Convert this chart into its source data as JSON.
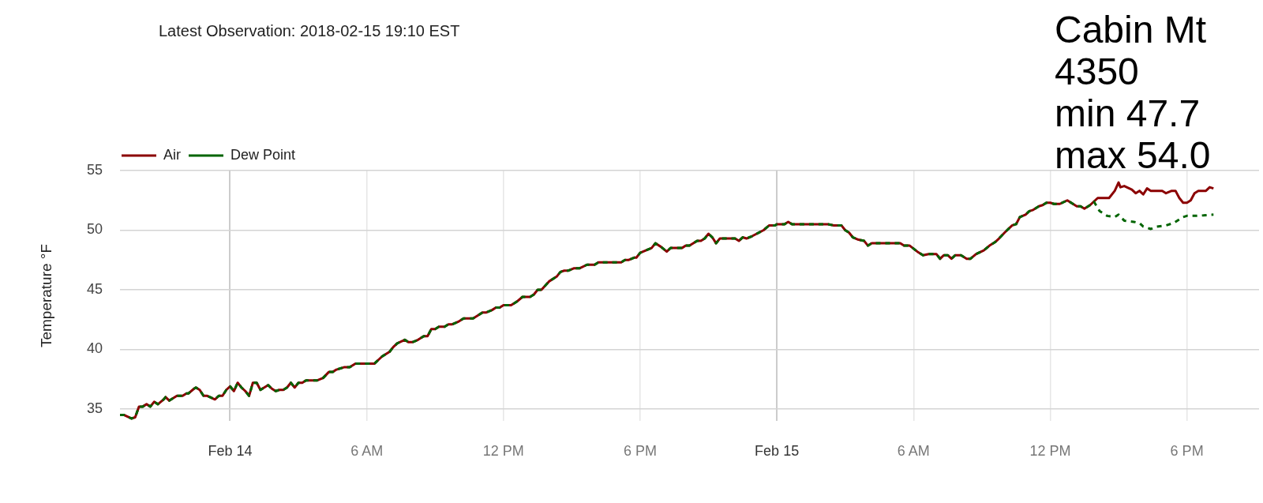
{
  "chart_data": {
    "type": "line",
    "title": "Cabin Mt",
    "subtitle": "4350",
    "annotations": [
      "Latest Observation: 2018-02-15 19:10 EST",
      "min 47.7",
      "max 54.0"
    ],
    "ylabel": "Temperature °F",
    "legend": "top left",
    "grid": true,
    "xlim": [
      "2018-02-13T19:10",
      "2018-02-15T21:10"
    ],
    "xticks": [
      {
        "value": "2018-02-14",
        "label": "Feb 14"
      },
      {
        "value": "2018-02-14T06:00",
        "label": "6 AM"
      },
      {
        "value": "2018-02-14T12:00",
        "label": "12 PM"
      },
      {
        "value": "2018-02-14T18:00",
        "label": "6 PM"
      },
      {
        "value": "2018-02-15",
        "label": "Feb 15"
      },
      {
        "value": "2018-02-15T06:00",
        "label": "6 AM"
      },
      {
        "value": "2018-02-15T12:00",
        "label": "12 PM"
      },
      {
        "value": "2018-02-15T18:00",
        "label": "6 PM"
      }
    ],
    "ylim": [
      34,
      55
    ],
    "yticks": [
      35,
      40,
      45,
      50,
      55
    ],
    "series": [
      {
        "name": "Air",
        "color": "#8b0000",
        "line_style": "solid",
        "x": [
          "2018-02-13T19:10",
          "2018-02-13T19:20",
          "2018-02-13T19:40",
          "2018-02-13T19:50",
          "2018-02-13T20:00",
          "2018-02-13T20:10",
          "2018-02-13T20:20",
          "2018-02-13T20:30",
          "2018-02-13T20:40",
          "2018-02-13T20:50",
          "2018-02-13T21:05",
          "2018-02-13T21:10",
          "2018-02-13T21:20",
          "2018-02-13T21:40",
          "2018-02-13T21:55",
          "2018-02-13T22:05",
          "2018-02-13T22:10",
          "2018-02-13T22:25",
          "2018-02-13T22:30",
          "2018-02-13T22:40",
          "2018-02-13T22:50",
          "2018-02-13T23:00",
          "2018-02-13T23:20",
          "2018-02-13T23:30",
          "2018-02-13T23:40",
          "2018-02-13T23:50",
          "2018-02-14T00:00",
          "2018-02-14T00:10",
          "2018-02-14T00:20",
          "2018-02-14T00:30",
          "2018-02-14T00:40",
          "2018-02-14T00:50",
          "2018-02-14T01:00",
          "2018-02-14T01:10",
          "2018-02-14T01:20",
          "2018-02-14T01:40",
          "2018-02-14T01:50",
          "2018-02-14T02:00",
          "2018-02-14T02:10",
          "2018-02-14T02:20",
          "2018-02-14T02:30",
          "2018-02-14T02:40",
          "2018-02-14T02:50",
          "2018-02-14T03:00",
          "2018-02-14T03:10",
          "2018-02-14T03:20",
          "2018-02-14T03:50",
          "2018-02-14T04:05",
          "2018-02-14T04:20",
          "2018-02-14T04:30",
          "2018-02-14T04:40",
          "2018-02-14T05:00",
          "2018-02-14T05:15",
          "2018-02-14T05:30",
          "2018-02-14T06:20",
          "2018-02-14T06:30",
          "2018-02-14T06:40",
          "2018-02-14T07:00",
          "2018-02-14T07:10",
          "2018-02-14T07:20",
          "2018-02-14T07:40",
          "2018-02-14T07:50",
          "2018-02-14T08:00",
          "2018-02-14T08:15",
          "2018-02-14T08:30",
          "2018-02-14T08:40",
          "2018-02-14T08:50",
          "2018-02-14T09:00",
          "2018-02-14T09:10",
          "2018-02-14T09:25",
          "2018-02-14T09:35",
          "2018-02-14T09:45",
          "2018-02-14T10:00",
          "2018-02-14T10:15",
          "2018-02-14T10:40",
          "2018-02-14T10:55",
          "2018-02-14T11:05",
          "2018-02-14T11:15",
          "2018-02-14T11:30",
          "2018-02-14T11:40",
          "2018-02-14T11:50",
          "2018-02-14T12:00",
          "2018-02-14T12:20",
          "2018-02-14T12:35",
          "2018-02-14T12:50",
          "2018-02-14T13:10",
          "2018-02-14T13:20",
          "2018-02-14T13:30",
          "2018-02-14T13:40",
          "2018-02-14T14:00",
          "2018-02-14T14:20",
          "2018-02-14T14:30",
          "2018-02-14T14:40",
          "2018-02-14T14:50",
          "2018-02-14T15:05",
          "2018-02-14T15:20",
          "2018-02-14T15:40",
          "2018-02-14T16:00",
          "2018-02-14T16:10",
          "2018-02-14T17:10",
          "2018-02-14T17:20",
          "2018-02-14T17:30",
          "2018-02-14T17:45",
          "2018-02-14T17:50",
          "2018-02-14T18:00",
          "2018-02-14T18:15",
          "2018-02-14T18:30",
          "2018-02-14T18:40",
          "2018-02-14T18:55",
          "2018-02-14T19:10",
          "2018-02-14T19:20",
          "2018-02-14T19:50",
          "2018-02-14T20:00",
          "2018-02-14T20:10",
          "2018-02-14T20:30",
          "2018-02-14T20:40",
          "2018-02-14T20:50",
          "2018-02-14T21:00",
          "2018-02-14T21:10",
          "2018-02-14T21:20",
          "2018-02-14T21:30",
          "2018-02-14T22:10",
          "2018-02-14T22:20",
          "2018-02-14T22:30",
          "2018-02-14T22:40",
          "2018-02-14T22:55",
          "2018-02-14T23:25",
          "2018-02-14T23:40",
          "2018-02-14T23:55",
          "2018-02-15T00:00",
          "2018-02-15T00:20",
          "2018-02-15T00:30",
          "2018-02-15T00:40",
          "2018-02-15T02:15",
          "2018-02-15T02:30",
          "2018-02-15T02:50",
          "2018-02-15T03:00",
          "2018-02-15T03:10",
          "2018-02-15T03:20",
          "2018-02-15T03:35",
          "2018-02-15T03:50",
          "2018-02-15T04:00",
          "2018-02-15T04:10",
          "2018-02-15T05:25",
          "2018-02-15T05:35",
          "2018-02-15T05:50",
          "2018-02-15T06:10",
          "2018-02-15T06:25",
          "2018-02-15T06:40",
          "2018-02-15T07:00",
          "2018-02-15T07:10",
          "2018-02-15T07:20",
          "2018-02-15T07:30",
          "2018-02-15T07:40",
          "2018-02-15T07:50",
          "2018-02-15T08:05",
          "2018-02-15T08:20",
          "2018-02-15T08:30",
          "2018-02-15T08:45",
          "2018-02-15T09:05",
          "2018-02-15T09:20",
          "2018-02-15T09:35",
          "2018-02-15T09:45",
          "2018-02-15T10:00",
          "2018-02-15T10:10",
          "2018-02-15T10:20",
          "2018-02-15T10:30",
          "2018-02-15T10:40",
          "2018-02-15T10:55",
          "2018-02-15T11:05",
          "2018-02-15T11:15",
          "2018-02-15T11:30",
          "2018-02-15T11:40",
          "2018-02-15T11:50",
          "2018-02-15T12:00",
          "2018-02-15T12:10",
          "2018-02-15T12:25",
          "2018-02-15T12:45",
          "2018-02-15T13:00",
          "2018-02-15T13:10",
          "2018-02-15T13:20",
          "2018-02-15T13:30",
          "2018-02-15T13:45",
          "2018-02-15T13:55",
          "2018-02-15T14:05",
          "2018-02-15T14:35",
          "2018-02-15T14:50",
          "2018-02-15T15:00",
          "2018-02-15T15:05",
          "2018-02-15T15:15",
          "2018-02-15T15:35",
          "2018-02-15T15:45",
          "2018-02-15T15:55",
          "2018-02-15T16:05",
          "2018-02-15T16:15",
          "2018-02-15T16:25",
          "2018-02-15T16:55",
          "2018-02-15T17:05",
          "2018-02-15T17:20",
          "2018-02-15T17:30",
          "2018-02-15T17:40",
          "2018-02-15T17:50",
          "2018-02-15T18:00",
          "2018-02-15T18:10",
          "2018-02-15T18:20",
          "2018-02-15T18:30",
          "2018-02-15T18:50",
          "2018-02-15T19:00",
          "2018-02-15T19:10"
        ],
        "values": [
          34.5,
          34.5,
          34.2,
          34.3,
          35.2,
          35.2,
          35.4,
          35.2,
          35.6,
          35.4,
          35.8,
          36.0,
          35.7,
          36.1,
          36.1,
          36.3,
          36.3,
          36.7,
          36.8,
          36.6,
          36.1,
          36.1,
          35.8,
          36.1,
          36.1,
          36.6,
          36.9,
          36.5,
          37.2,
          36.8,
          36.5,
          36.1,
          37.2,
          37.2,
          36.6,
          37.0,
          36.7,
          36.5,
          36.6,
          36.6,
          36.8,
          37.2,
          36.8,
          37.2,
          37.2,
          37.4,
          37.4,
          37.6,
          38.1,
          38.1,
          38.3,
          38.5,
          38.5,
          38.8,
          38.8,
          39.1,
          39.4,
          39.8,
          40.2,
          40.5,
          40.8,
          40.6,
          40.6,
          40.8,
          41.1,
          41.1,
          41.7,
          41.7,
          41.9,
          41.9,
          42.1,
          42.1,
          42.3,
          42.6,
          42.6,
          42.9,
          43.1,
          43.1,
          43.3,
          43.5,
          43.5,
          43.7,
          43.7,
          44.0,
          44.4,
          44.4,
          44.6,
          45.0,
          45.0,
          45.7,
          46.1,
          46.5,
          46.6,
          46.6,
          46.8,
          46.8,
          47.1,
          47.1,
          47.3,
          47.3,
          47.5,
          47.5,
          47.7,
          47.7,
          48.1,
          48.3,
          48.5,
          48.9,
          48.6,
          48.2,
          48.5,
          48.5,
          48.7,
          48.7,
          49.1,
          49.1,
          49.3,
          49.7,
          49.4,
          48.9,
          49.3,
          49.3,
          49.1,
          49.4,
          49.3,
          49.5,
          50.0,
          50.4,
          50.4,
          50.5,
          50.5,
          50.7,
          50.5,
          50.5,
          50.4,
          50.4,
          50.0,
          49.8,
          49.4,
          49.2,
          49.1,
          48.7,
          48.9,
          48.9,
          48.7,
          48.7,
          48.2,
          47.9,
          48.0,
          48.0,
          47.6,
          47.9,
          47.9,
          47.6,
          47.9,
          47.9,
          47.6,
          47.6,
          48.0,
          48.3,
          48.7,
          49.0,
          49.3,
          49.8,
          50.1,
          50.4,
          50.5,
          51.1,
          51.3,
          51.6,
          51.7,
          52.0,
          52.1,
          52.3,
          52.3,
          52.2,
          52.2,
          52.5,
          52.2,
          52.0,
          52.0,
          51.8,
          52.1,
          52.4,
          52.7,
          52.7,
          53.3,
          54.0,
          53.6,
          53.7,
          53.4,
          53.1,
          53.3,
          53.0,
          53.5,
          53.3,
          53.3,
          53.1,
          53.3,
          53.3,
          52.7,
          52.3,
          52.3,
          52.5,
          53.1,
          53.3,
          53.3,
          53.6,
          53.5
        ]
      },
      {
        "name": "Dew Point",
        "color": "#006400",
        "line_style": "dashed",
        "x": [
          "2018-02-13T19:10",
          "2018-02-13T19:20",
          "2018-02-13T19:40",
          "2018-02-13T19:50",
          "2018-02-13T20:00",
          "2018-02-13T20:10",
          "2018-02-13T20:20",
          "2018-02-13T20:30",
          "2018-02-13T20:40",
          "2018-02-13T20:50",
          "2018-02-13T21:05",
          "2018-02-13T21:10",
          "2018-02-13T21:20",
          "2018-02-13T21:40",
          "2018-02-13T21:55",
          "2018-02-13T22:05",
          "2018-02-13T22:10",
          "2018-02-13T22:25",
          "2018-02-13T22:30",
          "2018-02-13T22:40",
          "2018-02-13T22:50",
          "2018-02-13T23:00",
          "2018-02-13T23:20",
          "2018-02-13T23:30",
          "2018-02-13T23:40",
          "2018-02-13T23:50",
          "2018-02-14T00:00",
          "2018-02-14T00:10",
          "2018-02-14T00:20",
          "2018-02-14T00:30",
          "2018-02-14T00:40",
          "2018-02-14T00:50",
          "2018-02-14T01:00",
          "2018-02-14T01:10",
          "2018-02-14T01:20",
          "2018-02-14T01:40",
          "2018-02-14T01:50",
          "2018-02-14T02:00",
          "2018-02-14T02:10",
          "2018-02-14T02:20",
          "2018-02-14T02:30",
          "2018-02-14T02:40",
          "2018-02-14T02:50",
          "2018-02-14T03:00",
          "2018-02-14T03:10",
          "2018-02-14T03:20",
          "2018-02-14T03:50",
          "2018-02-14T04:05",
          "2018-02-14T04:20",
          "2018-02-14T04:30",
          "2018-02-14T04:40",
          "2018-02-14T05:00",
          "2018-02-14T05:15",
          "2018-02-14T05:30",
          "2018-02-14T06:20",
          "2018-02-14T06:30",
          "2018-02-14T06:40",
          "2018-02-14T07:00",
          "2018-02-14T07:10",
          "2018-02-14T07:20",
          "2018-02-14T07:40",
          "2018-02-14T07:50",
          "2018-02-14T08:00",
          "2018-02-14T08:15",
          "2018-02-14T08:30",
          "2018-02-14T08:40",
          "2018-02-14T08:50",
          "2018-02-14T09:00",
          "2018-02-14T09:10",
          "2018-02-14T09:25",
          "2018-02-14T09:35",
          "2018-02-14T09:45",
          "2018-02-14T10:00",
          "2018-02-14T10:15",
          "2018-02-14T10:40",
          "2018-02-14T10:55",
          "2018-02-14T11:05",
          "2018-02-14T11:15",
          "2018-02-14T11:30",
          "2018-02-14T11:40",
          "2018-02-14T11:50",
          "2018-02-14T12:00",
          "2018-02-14T12:20",
          "2018-02-14T12:35",
          "2018-02-14T12:50",
          "2018-02-14T13:10",
          "2018-02-14T13:20",
          "2018-02-14T13:30",
          "2018-02-14T13:40",
          "2018-02-14T14:00",
          "2018-02-14T14:20",
          "2018-02-14T14:30",
          "2018-02-14T14:40",
          "2018-02-14T14:50",
          "2018-02-14T15:05",
          "2018-02-14T15:20",
          "2018-02-14T15:40",
          "2018-02-14T16:00",
          "2018-02-14T16:10",
          "2018-02-14T17:10",
          "2018-02-14T17:20",
          "2018-02-14T17:30",
          "2018-02-14T17:45",
          "2018-02-14T17:50",
          "2018-02-14T18:00",
          "2018-02-14T18:15",
          "2018-02-14T18:30",
          "2018-02-14T18:40",
          "2018-02-14T18:55",
          "2018-02-14T19:10",
          "2018-02-14T19:20",
          "2018-02-14T19:50",
          "2018-02-14T20:00",
          "2018-02-14T20:10",
          "2018-02-14T20:30",
          "2018-02-14T20:40",
          "2018-02-14T20:50",
          "2018-02-14T21:00",
          "2018-02-14T21:10",
          "2018-02-14T21:20",
          "2018-02-14T21:30",
          "2018-02-14T22:10",
          "2018-02-14T22:20",
          "2018-02-14T22:30",
          "2018-02-14T22:40",
          "2018-02-14T22:55",
          "2018-02-14T23:25",
          "2018-02-14T23:40",
          "2018-02-14T23:55",
          "2018-02-15T00:00",
          "2018-02-15T00:20",
          "2018-02-15T00:30",
          "2018-02-15T00:40",
          "2018-02-15T02:15",
          "2018-02-15T02:30",
          "2018-02-15T02:50",
          "2018-02-15T03:00",
          "2018-02-15T03:10",
          "2018-02-15T03:20",
          "2018-02-15T03:35",
          "2018-02-15T03:50",
          "2018-02-15T04:00",
          "2018-02-15T04:10",
          "2018-02-15T05:25",
          "2018-02-15T05:35",
          "2018-02-15T05:50",
          "2018-02-15T06:10",
          "2018-02-15T06:25",
          "2018-02-15T06:40",
          "2018-02-15T07:00",
          "2018-02-15T07:10",
          "2018-02-15T07:20",
          "2018-02-15T07:30",
          "2018-02-15T07:40",
          "2018-02-15T07:50",
          "2018-02-15T08:05",
          "2018-02-15T08:20",
          "2018-02-15T08:30",
          "2018-02-15T08:45",
          "2018-02-15T09:05",
          "2018-02-15T09:20",
          "2018-02-15T09:35",
          "2018-02-15T09:45",
          "2018-02-15T10:00",
          "2018-02-15T10:10",
          "2018-02-15T10:20",
          "2018-02-15T10:30",
          "2018-02-15T10:40",
          "2018-02-15T10:55",
          "2018-02-15T11:05",
          "2018-02-15T11:15",
          "2018-02-15T11:30",
          "2018-02-15T11:40",
          "2018-02-15T11:50",
          "2018-02-15T12:00",
          "2018-02-15T12:10",
          "2018-02-15T12:25",
          "2018-02-15T12:45",
          "2018-02-15T13:00",
          "2018-02-15T13:10",
          "2018-02-15T13:20",
          "2018-02-15T13:30",
          "2018-02-15T13:45",
          "2018-02-15T13:55",
          "2018-02-15T14:10",
          "2018-02-15T14:30",
          "2018-02-15T14:50",
          "2018-02-15T15:00",
          "2018-02-15T15:15",
          "2018-02-15T15:40",
          "2018-02-15T15:55",
          "2018-02-15T16:05",
          "2018-02-15T16:25",
          "2018-02-15T16:40",
          "2018-02-15T17:05",
          "2018-02-15T17:25",
          "2018-02-15T17:50",
          "2018-02-15T18:00",
          "2018-02-15T18:25",
          "2018-02-15T19:10"
        ],
        "values": [
          34.5,
          34.5,
          34.2,
          34.3,
          35.2,
          35.2,
          35.4,
          35.2,
          35.6,
          35.4,
          35.8,
          36.0,
          35.7,
          36.1,
          36.1,
          36.3,
          36.3,
          36.7,
          36.8,
          36.6,
          36.1,
          36.1,
          35.8,
          36.1,
          36.1,
          36.6,
          36.9,
          36.5,
          37.2,
          36.8,
          36.5,
          36.1,
          37.2,
          37.2,
          36.6,
          37.0,
          36.7,
          36.5,
          36.6,
          36.6,
          36.8,
          37.2,
          36.8,
          37.2,
          37.2,
          37.4,
          37.4,
          37.6,
          38.1,
          38.1,
          38.3,
          38.5,
          38.5,
          38.8,
          38.8,
          39.1,
          39.4,
          39.8,
          40.2,
          40.5,
          40.8,
          40.6,
          40.6,
          40.8,
          41.1,
          41.1,
          41.7,
          41.7,
          41.9,
          41.9,
          42.1,
          42.1,
          42.3,
          42.6,
          42.6,
          42.9,
          43.1,
          43.1,
          43.3,
          43.5,
          43.5,
          43.7,
          43.7,
          44.0,
          44.4,
          44.4,
          44.6,
          45.0,
          45.0,
          45.7,
          46.1,
          46.5,
          46.6,
          46.6,
          46.8,
          46.8,
          47.1,
          47.1,
          47.3,
          47.3,
          47.5,
          47.5,
          47.7,
          47.7,
          48.1,
          48.3,
          48.5,
          48.9,
          48.6,
          48.2,
          48.5,
          48.5,
          48.7,
          48.7,
          49.1,
          49.1,
          49.3,
          49.7,
          49.4,
          48.9,
          49.3,
          49.3,
          49.1,
          49.4,
          49.3,
          49.5,
          50.0,
          50.4,
          50.4,
          50.5,
          50.5,
          50.7,
          50.5,
          50.5,
          50.4,
          50.4,
          50.0,
          49.8,
          49.4,
          49.2,
          49.1,
          48.7,
          48.9,
          48.9,
          48.7,
          48.7,
          48.2,
          47.9,
          48.0,
          48.0,
          47.6,
          47.9,
          47.9,
          47.6,
          47.9,
          47.9,
          47.6,
          47.6,
          48.0,
          48.3,
          48.7,
          49.0,
          49.3,
          49.8,
          50.1,
          50.4,
          50.5,
          51.1,
          51.3,
          51.6,
          51.7,
          52.0,
          52.1,
          52.3,
          52.3,
          52.2,
          52.2,
          52.5,
          52.2,
          52.0,
          52.0,
          51.8,
          52.1,
          52.4,
          51.6,
          51.2,
          51.1,
          51.3,
          50.8,
          50.7,
          50.6,
          50.3,
          50.1,
          50.3,
          50.4,
          50.6,
          51.1,
          51.2,
          51.2,
          51.3
        ]
      }
    ]
  }
}
